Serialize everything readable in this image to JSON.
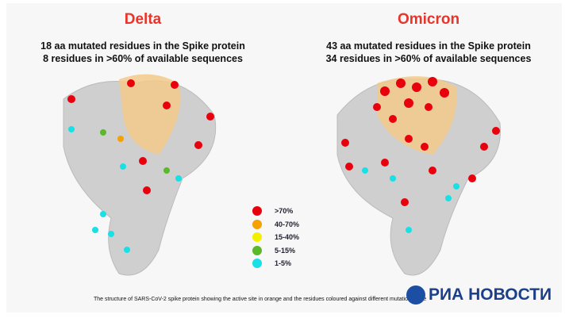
{
  "delta": {
    "title": "Delta",
    "line1": "18 aa mutated residues in the Spike protein",
    "line2": "8 residues in >60% of available sequences"
  },
  "omicron": {
    "title": "Omicron",
    "line1": "43 aa mutated residues in the Spike protein",
    "line2": "34 residues in >60% of available sequences"
  },
  "legend": [
    {
      "label": ">70%",
      "color": "#e8000c"
    },
    {
      "label": "40-70%",
      "color": "#f5a100"
    },
    {
      "label": "15-40%",
      "color": "#f2f000"
    },
    {
      "label": "5-15%",
      "color": "#5cb82a"
    },
    {
      "label": "1-5%",
      "color": "#19e0e6"
    }
  ],
  "caption": "The structure of SARS-CoV-2 spike protein showing the active site in orange and the residues coloured against different mutational rate",
  "logo": "РИА НОВОСТИ",
  "colors": {
    "title": "#e8342a",
    "active_site": "#f3c98a",
    "protein": "#c9c9c9"
  }
}
